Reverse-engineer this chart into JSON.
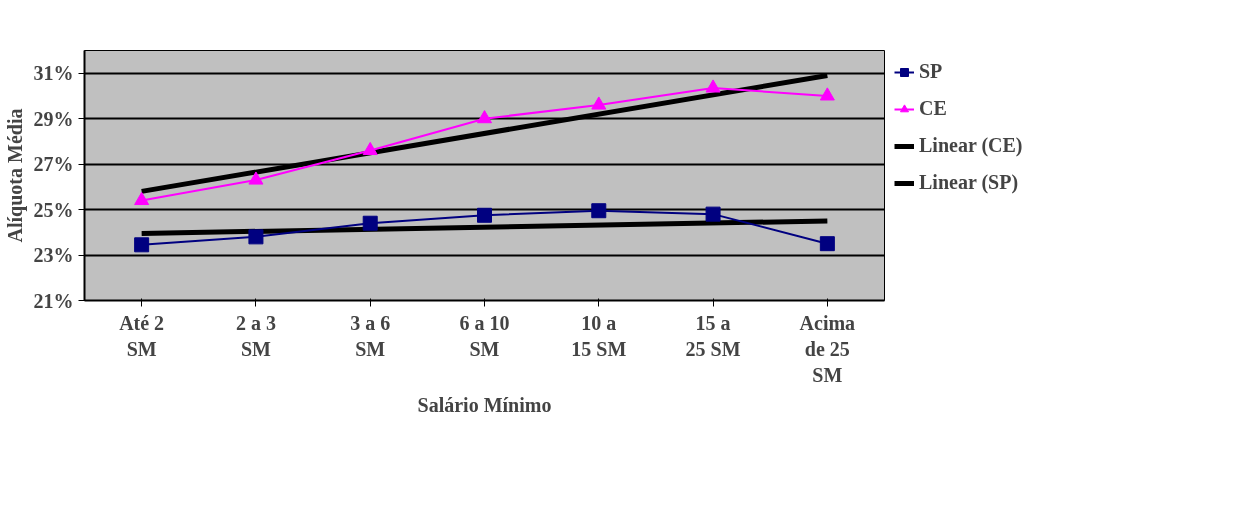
{
  "chart_data": {
    "type": "line",
    "xlabel": "Salário Mínimo",
    "ylabel": "Alíquota Média",
    "categories": [
      "Até 2 SM",
      "2 a 3 SM",
      "3 a 6 SM",
      "6 a 10 SM",
      "10 a 15 SM",
      "15 a 25 SM",
      "Acima de 25 SM"
    ],
    "ylim": [
      21,
      32
    ],
    "yticks": [
      {
        "value": 21,
        "label": "21%"
      },
      {
        "value": 23,
        "label": "23%"
      },
      {
        "value": 25,
        "label": "25%"
      },
      {
        "value": 27,
        "label": "27%"
      },
      {
        "value": 29,
        "label": "29%"
      },
      {
        "value": 31,
        "label": "31%"
      }
    ],
    "grid": "y",
    "legend": "right",
    "series": [
      {
        "name": "SP",
        "color": "#000080",
        "marker": "square",
        "values": [
          23.45,
          23.8,
          24.4,
          24.75,
          24.95,
          24.8,
          23.5
        ]
      },
      {
        "name": "CE",
        "color": "#ff00ff",
        "marker": "triangle",
        "values": [
          25.4,
          26.3,
          27.6,
          29.0,
          29.6,
          30.35,
          30.0
        ]
      },
      {
        "name": "Linear (CE)",
        "color": "#000000",
        "marker": "none",
        "values": [
          25.8,
          null,
          null,
          null,
          null,
          null,
          30.9
        ]
      },
      {
        "name": "Linear (SP)",
        "color": "#000000",
        "marker": "none",
        "values": [
          23.95,
          null,
          null,
          null,
          null,
          null,
          24.5
        ]
      }
    ]
  }
}
